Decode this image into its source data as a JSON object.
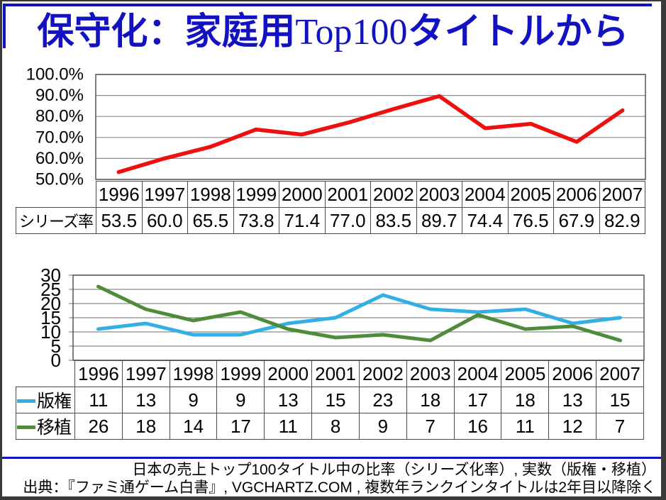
{
  "title": {
    "prefix": "保守化：家庭用",
    "latin": "Top100",
    "suffix": "タイトルから"
  },
  "colors": {
    "title_blue": "#1212c2",
    "frame_blue": "#1212c2",
    "outer_border": "#3a3a3a",
    "grid_gray": "#8c8c8c",
    "table_border": "#4a4a4a",
    "series_rate_red": "#ee0f0f",
    "license_blue": "#33afe3",
    "port_green": "#4e8b3b"
  },
  "chart_data": [
    {
      "type": "line",
      "categories": [
        "1996",
        "1997",
        "1998",
        "1999",
        "2000",
        "2001",
        "2002",
        "2003",
        "2004",
        "2005",
        "2006",
        "2007"
      ],
      "ylim": [
        50,
        100
      ],
      "ytick_labels": [
        "100.0%",
        "90.0%",
        "80.0%",
        "70.0%",
        "60.0%",
        "50.0%"
      ],
      "grid": "horizontal",
      "legend_position": "none",
      "series": [
        {
          "key": "series-rate",
          "name": "シリーズ率",
          "color": "#ee0f0f",
          "decimals": 1,
          "values": [
            53.5,
            60.0,
            65.5,
            73.8,
            71.4,
            77.0,
            83.5,
            89.7,
            74.4,
            76.5,
            67.9,
            82.9
          ]
        }
      ]
    },
    {
      "type": "line",
      "categories": [
        "1996",
        "1997",
        "1998",
        "1999",
        "2000",
        "2001",
        "2002",
        "2003",
        "2004",
        "2005",
        "2006",
        "2007"
      ],
      "ylim": [
        0,
        30
      ],
      "ytick_labels": [
        "30",
        "25",
        "20",
        "15",
        "10",
        "5",
        "0"
      ],
      "grid": "horizontal",
      "legend_position": "table-left",
      "series": [
        {
          "key": "license",
          "name": "版権",
          "color": "#33afe3",
          "decimals": 0,
          "values": [
            11,
            13,
            9,
            9,
            13,
            15,
            23,
            18,
            17,
            18,
            13,
            15
          ]
        },
        {
          "key": "port",
          "name": "移植",
          "color": "#4e8b3b",
          "decimals": 0,
          "values": [
            26,
            18,
            14,
            17,
            11,
            8,
            9,
            7,
            16,
            11,
            12,
            7
          ]
        }
      ]
    }
  ],
  "footer": {
    "line1": "日本の売上トップ100タイトル中の比率（シリーズ化率）, 実数（版権・移植）",
    "line2": "出典：『ファミ通ゲーム白書』, VGCHARTZ.COM , 複数年ランクインタイトルは2年目以降除く"
  }
}
